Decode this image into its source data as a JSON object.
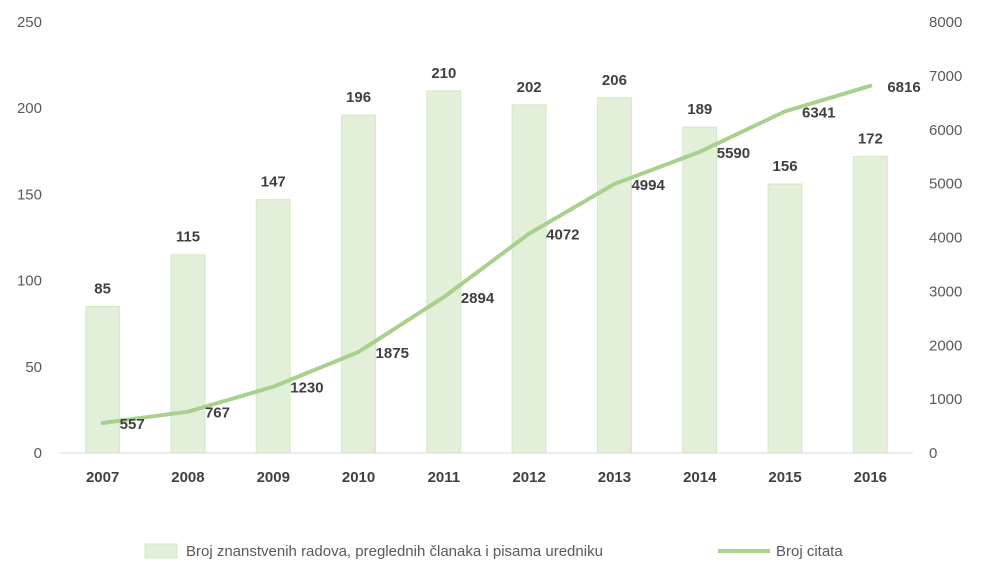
{
  "chart_data": {
    "type": "bar",
    "categories": [
      "2007",
      "2008",
      "2009",
      "2010",
      "2011",
      "2012",
      "2013",
      "2014",
      "2015",
      "2016"
    ],
    "series": [
      {
        "name": "Broj znanstvenih radova, preglednih članaka i pisama uredniku",
        "type": "bar",
        "axis": "left",
        "values": [
          85,
          115,
          147,
          196,
          210,
          202,
          206,
          189,
          156,
          172
        ]
      },
      {
        "name": "Broj citata",
        "type": "line",
        "axis": "right",
        "values": [
          557,
          767,
          1230,
          1875,
          2894,
          4072,
          4994,
          5590,
          6341,
          6816
        ]
      }
    ],
    "ylim_left": [
      0,
      250
    ],
    "yticks_left": [
      0,
      50,
      100,
      150,
      200,
      250
    ],
    "ylim_right": [
      0,
      8000
    ],
    "yticks_right": [
      0,
      1000,
      2000,
      3000,
      4000,
      5000,
      6000,
      7000,
      8000
    ],
    "grid": false,
    "legend": "bottom",
    "colors": {
      "bar": "#e2efd9",
      "bar_edge": "#d5e8c8",
      "line": "#a9d18e",
      "axis": "#d9d9d9"
    }
  }
}
